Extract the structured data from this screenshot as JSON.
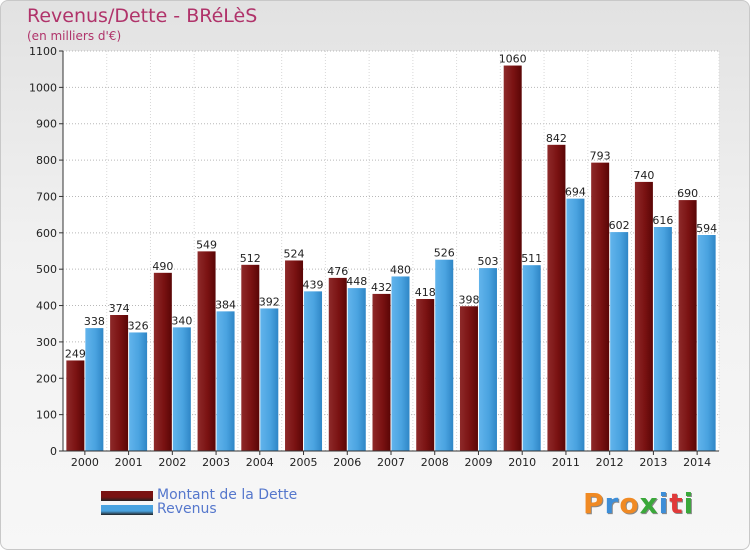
{
  "header": {
    "title": "Revenus/Dette - BRéLèS",
    "subtitle": "(en milliers d'€)"
  },
  "chart_data": {
    "type": "bar",
    "categories": [
      "2000",
      "2001",
      "2002",
      "2003",
      "2004",
      "2005",
      "2006",
      "2007",
      "2008",
      "2009",
      "2010",
      "2011",
      "2012",
      "2013",
      "2014"
    ],
    "series": [
      {
        "name": "Montant de la Dette",
        "color": "#7a1212",
        "values": [
          249,
          374,
          490,
          549,
          512,
          524,
          476,
          432,
          418,
          398,
          1060,
          842,
          793,
          740,
          690
        ]
      },
      {
        "name": "Revenus",
        "color": "#4aa3e0",
        "values": [
          338,
          326,
          340,
          384,
          392,
          439,
          448,
          480,
          526,
          503,
          511,
          694,
          602,
          616,
          594
        ]
      }
    ],
    "ylim": [
      0,
      1100
    ],
    "yticks": [
      0,
      100,
      200,
      300,
      400,
      500,
      600,
      700,
      800,
      900,
      1000,
      1100
    ],
    "grid": true,
    "legend_position": "bottom-left"
  },
  "legend": {
    "items": [
      {
        "label": "Montant de la Dette",
        "color": "#7a1212"
      },
      {
        "label": "Revenus",
        "color": "#4aa3e0"
      }
    ]
  },
  "logo": {
    "letters": [
      "P",
      "r",
      "o",
      "x",
      "i",
      "t",
      "i"
    ],
    "colors": [
      "#f08a24",
      "#3d8ed8",
      "#f08a24",
      "#3aa83a",
      "#3d8ed8",
      "#e03a3a",
      "#3aa83a"
    ]
  }
}
